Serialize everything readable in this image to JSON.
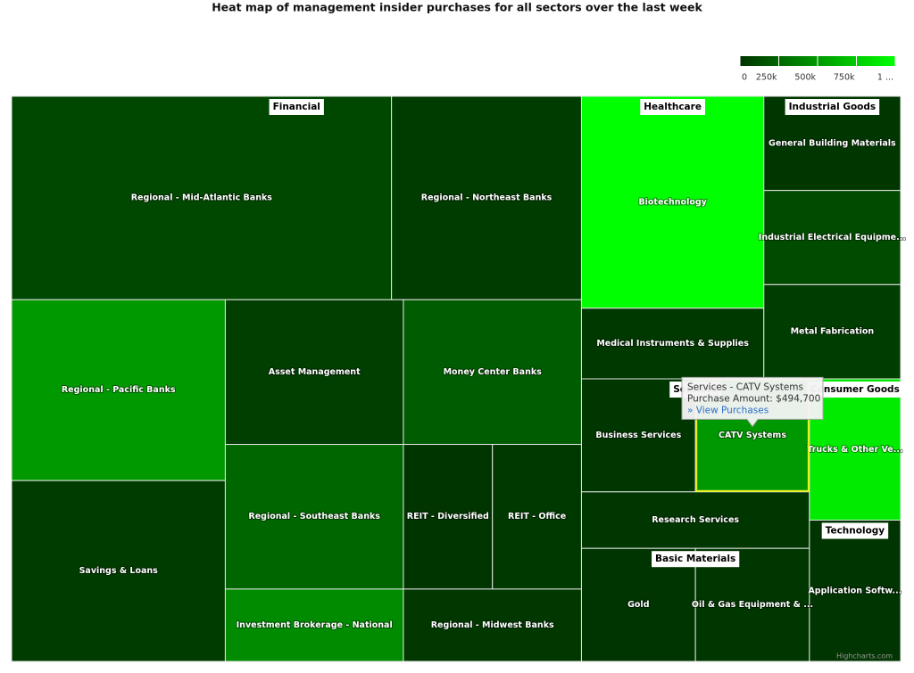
{
  "chart_data": {
    "type": "treemap",
    "title": "Heat map of management insider purchases for all sectors over the last week",
    "color_axis": {
      "min": 0,
      "max": 1000000,
      "minColor": "#003300",
      "maxColor": "#00ff00",
      "ticks": [
        0,
        {
          "value": 250000,
          "label": "250k"
        },
        {
          "value": 500000,
          "label": "500k"
        },
        {
          "value": 750000,
          "label": "750k"
        },
        {
          "value": 1000000,
          "label": "1 ..."
        }
      ]
    },
    "groups": [
      {
        "name": "Financial",
        "children": [
          {
            "name": "Regional - Mid-Atlantic Banks",
            "value": 6,
            "colorValue": 100000
          },
          {
            "name": "Regional - Northeast Banks",
            "value": 3,
            "colorValue": 40000
          },
          {
            "name": "Regional - Pacific Banks",
            "value": 3,
            "colorValue": 500000
          },
          {
            "name": "Savings & Loans",
            "value": 3,
            "colorValue": 40000
          },
          {
            "name": "Asset Management",
            "value": 2,
            "colorValue": 60000
          },
          {
            "name": "Money Center Banks",
            "value": 2,
            "colorValue": 200000
          },
          {
            "name": "Regional - Southeast Banks",
            "value": 2,
            "colorValue": 250000
          },
          {
            "name": "REIT - Diversified",
            "value": 1,
            "colorValue": 10000
          },
          {
            "name": "REIT - Office",
            "value": 1,
            "colorValue": 30000
          },
          {
            "name": "Investment Brokerage - National",
            "value": 1,
            "colorValue": 430000
          },
          {
            "name": "Regional - Midwest Banks",
            "value": 1,
            "colorValue": 25000
          }
        ]
      },
      {
        "name": "Healthcare",
        "children": [
          {
            "name": "Biotechnology",
            "value": 3,
            "colorValue": 1000000
          },
          {
            "name": "Medical Instruments & Supplies",
            "value": 1,
            "colorValue": 30000
          }
        ]
      },
      {
        "name": "Industrial Goods",
        "children": [
          {
            "name": "General Building Materials",
            "value": 1,
            "colorValue": 20000
          },
          {
            "name": "Industrial Electrical Equipme...",
            "value": 1,
            "colorValue": 120000
          },
          {
            "name": "Metal Fabrication",
            "value": 1,
            "colorValue": 50000
          }
        ]
      },
      {
        "name": "Services",
        "children": [
          {
            "name": "Business Services",
            "value": 1,
            "colorValue": 20000
          },
          {
            "name": "CATV Systems",
            "value": 1,
            "colorValue": 494700
          },
          {
            "name": "Research Services",
            "value": 1,
            "colorValue": 20000
          }
        ]
      },
      {
        "name": "Consumer Goods",
        "children": [
          {
            "name": "Trucks & Other Ve...",
            "value": 1,
            "colorValue": 900000
          }
        ]
      },
      {
        "name": "Basic Materials",
        "children": [
          {
            "name": "Gold",
            "value": 1,
            "colorValue": 5000
          },
          {
            "name": "Oil & Gas Equipment & ...",
            "value": 1,
            "colorValue": 15000
          }
        ]
      },
      {
        "name": "Technology",
        "children": [
          {
            "name": "Application Softw...",
            "value": 1,
            "colorValue": 5000
          }
        ]
      }
    ],
    "tooltip": {
      "title": "Services - CATV Systems",
      "text": "Purchase Amount: $494,700",
      "link": "» View Purchases"
    },
    "credits": "Highcharts.com"
  }
}
